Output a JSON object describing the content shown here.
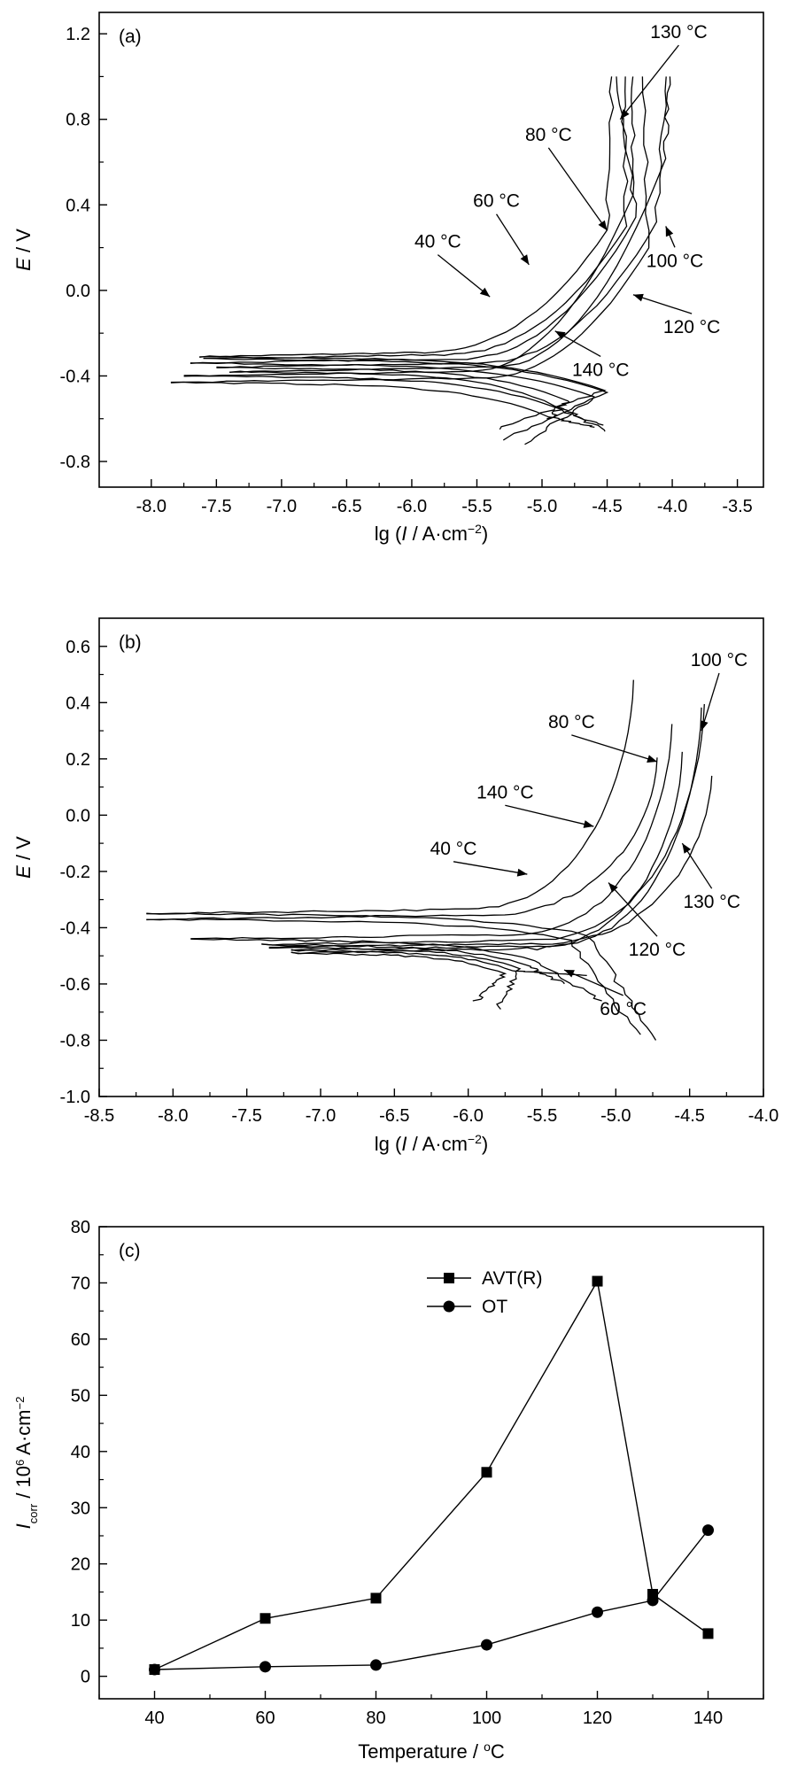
{
  "chart_data": [
    {
      "type": "line",
      "panel": "(a)",
      "xlabel": {
        "pre": "lg (",
        "italic": "I",
        "mid": " / A·cm",
        "sup": "−2",
        "post": ")"
      },
      "ylabel": {
        "italic": "E",
        "rest": " / V"
      },
      "xlim": [
        -8.4,
        -3.3
      ],
      "ylim": [
        -0.92,
        1.3
      ],
      "xticks": [
        "-8.0",
        "-7.5",
        "-7.0",
        "-6.5",
        "-6.0",
        "-5.5",
        "-5.0",
        "-4.5",
        "-4.0",
        "-3.5"
      ],
      "yticks": [
        "-0.8",
        "-0.4",
        "0.0",
        "0.4",
        "0.8",
        "1.2"
      ],
      "series": [
        {
          "name": "40 °C",
          "ecorr": -0.31,
          "x0": -7.63,
          "xs": -5.9,
          "xv": -4.5,
          "yv": 0.28,
          "xtop": -4.46,
          "xend": -5.35,
          "ymin": -0.65,
          "cx": -4.52
        },
        {
          "name": "60 °C",
          "ecorr": -0.32,
          "x0": -7.6,
          "xs": -5.75,
          "xv": -4.35,
          "yv": 0.3,
          "xtop": -4.38,
          "xend": -5.3,
          "ymin": -0.7,
          "cx": -4.5
        },
        {
          "name": "80 °C",
          "ecorr": -0.34,
          "x0": -7.7,
          "xs": -5.65,
          "xv": -4.28,
          "yv": 0.34,
          "xtop": -4.42,
          "xend": -5.15,
          "ymin": -0.72,
          "cx": -4.6
        },
        {
          "name": "100 °C",
          "ecorr": -0.36,
          "x0": -7.5,
          "xs": -5.5,
          "xv": -4.12,
          "yv": 0.32,
          "xtop": -4.05,
          "xend": -4.95,
          "ymin": -0.6,
          "cx": -4.8
        },
        {
          "name": "120 °C",
          "ecorr": -0.38,
          "x0": -7.4,
          "xs": -5.4,
          "xv": -4.05,
          "yv": 0.62,
          "xtop": -4.03,
          "xend": -4.55,
          "ymin": -0.63,
          "cx": -4.9
        },
        {
          "name": "130 °C",
          "ecorr": -0.4,
          "x0": -7.75,
          "xs": -5.6,
          "xv": -4.3,
          "yv": 0.45,
          "xtop": -4.3,
          "xend": -4.5,
          "ymin": -0.66,
          "cx": -4.85
        },
        {
          "name": "140 °C",
          "ecorr": -0.43,
          "x0": -7.85,
          "xs": -5.5,
          "xv": -4.18,
          "yv": 0.2,
          "xtop": -4.22,
          "xend": -4.6,
          "ymin": -0.64,
          "cx": -4.95
        }
      ],
      "annotations": [
        {
          "text": "130 °C",
          "lx": -3.95,
          "ly": 1.18,
          "ax": -4.4,
          "ay": 0.8
        },
        {
          "text": "80 °C",
          "lx": -4.95,
          "ly": 0.7,
          "ax": -4.5,
          "ay": 0.28
        },
        {
          "text": "60 °C",
          "lx": -5.35,
          "ly": 0.39,
          "ax": -5.1,
          "ay": 0.12
        },
        {
          "text": "40 °C",
          "lx": -5.8,
          "ly": 0.2,
          "ax": -5.4,
          "ay": -0.03
        },
        {
          "text": "100 °C",
          "lx": -3.98,
          "ly": 0.11,
          "ax": -4.05,
          "ay": 0.3
        },
        {
          "text": "120 °C",
          "lx": -3.85,
          "ly": -0.2,
          "ax": -4.3,
          "ay": -0.02
        },
        {
          "text": "140 °C",
          "lx": -4.55,
          "ly": -0.4,
          "ax": -4.9,
          "ay": -0.19
        }
      ]
    },
    {
      "type": "line",
      "panel": "(b)",
      "xlabel": {
        "pre": "lg (",
        "italic": "I",
        "mid": " / A·cm",
        "sup": "−2",
        "post": ")"
      },
      "ylabel": {
        "italic": "E",
        "rest": " / V"
      },
      "xlim": [
        -8.5,
        -4.0
      ],
      "ylim": [
        -1.0,
        0.7
      ],
      "xticks": [
        "-8.5",
        "-8.0",
        "-7.5",
        "-7.0",
        "-6.5",
        "-6.0",
        "-5.5",
        "-5.0",
        "-4.5",
        "-4.0"
      ],
      "yticks": [
        "-1.0",
        "-0.8",
        "-0.6",
        "-0.4",
        "-0.2",
        "0.0",
        "0.2",
        "0.4",
        "0.6"
      ],
      "series": [
        {
          "name": "40 °C",
          "ecorr": -0.35,
          "x0": -8.18,
          "xs": -6.0,
          "xtop": -4.88,
          "ytop": 0.48,
          "xend": -4.72,
          "ymin": -0.8,
          "cx": -5.2
        },
        {
          "name": "60 °C",
          "ecorr": -0.37,
          "x0": -8.18,
          "xs": -5.9,
          "xtop": -4.72,
          "ytop": 0.2,
          "xend": -4.85,
          "ymin": -0.78,
          "cx": -5.3
        },
        {
          "name": "80 °C",
          "ecorr": -0.44,
          "x0": -7.88,
          "xs": -5.7,
          "xtop": -4.62,
          "ytop": 0.32,
          "xend": -5.1,
          "ymin": -0.66,
          "cx": -5.55
        },
        {
          "name": "100 °C",
          "ecorr": -0.46,
          "x0": -7.4,
          "xs": -5.55,
          "xtop": -4.4,
          "ytop": 0.4,
          "xend": -5.35,
          "ymin": -0.6,
          "cx": -5.6
        },
        {
          "name": "120 °C",
          "ecorr": -0.47,
          "x0": -7.35,
          "xs": -5.5,
          "xtop": -4.35,
          "ytop": 0.14,
          "xend": -5.8,
          "ymin": -0.69,
          "cx": -5.65
        },
        {
          "name": "130 °C",
          "ecorr": -0.48,
          "x0": -7.2,
          "xs": -5.45,
          "xtop": -4.42,
          "ytop": 0.38,
          "xend": -5.2,
          "ymin": -0.57,
          "cx": -5.7
        },
        {
          "name": "140 °C",
          "ecorr": -0.49,
          "x0": -7.2,
          "xs": -5.6,
          "xtop": -4.55,
          "ytop": 0.22,
          "xend": -5.95,
          "ymin": -0.66,
          "cx": -5.75
        }
      ],
      "annotations": [
        {
          "text": "100 °C",
          "lx": -4.3,
          "ly": 0.53,
          "ax": -4.42,
          "ay": 0.3
        },
        {
          "text": "80 °C",
          "lx": -5.3,
          "ly": 0.31,
          "ax": -4.72,
          "ay": 0.19
        },
        {
          "text": "140 °C",
          "lx": -5.75,
          "ly": 0.06,
          "ax": -5.15,
          "ay": -0.04
        },
        {
          "text": "40 °C",
          "lx": -6.1,
          "ly": -0.14,
          "ax": -5.6,
          "ay": -0.21
        },
        {
          "text": "130 °C",
          "lx": -4.35,
          "ly": -0.33,
          "ax": -4.55,
          "ay": -0.1
        },
        {
          "text": "120 °C",
          "lx": -4.72,
          "ly": -0.5,
          "ax": -5.05,
          "ay": -0.24
        },
        {
          "text": "60 °C",
          "lx": -4.95,
          "ly": -0.71,
          "ax": -5.35,
          "ay": -0.55
        }
      ]
    },
    {
      "type": "line",
      "panel": "(c)",
      "xlabel": {
        "pre": "Temperature / ",
        "sup": "o",
        "post": "C"
      },
      "ylabel": {
        "italic": "I",
        "sub": "corr",
        "mid": " / 10",
        "sup": "6",
        "rest": " A·cm",
        "sup2": "−2"
      },
      "xlim": [
        30,
        150
      ],
      "ylim": [
        -4,
        80
      ],
      "xticks": [
        40,
        60,
        80,
        100,
        120,
        140
      ],
      "yticks": [
        0,
        10,
        20,
        30,
        40,
        50,
        60,
        70,
        80
      ],
      "x": [
        40,
        60,
        80,
        100,
        120,
        130,
        140
      ],
      "series": [
        {
          "name": "AVT(R)",
          "marker": "square",
          "values": [
            1.2,
            10.3,
            13.9,
            36.3,
            70.3,
            14.6,
            7.6
          ]
        },
        {
          "name": "OT",
          "marker": "circle",
          "values": [
            1.2,
            1.7,
            2.0,
            5.6,
            11.4,
            13.5,
            26.0
          ]
        }
      ]
    }
  ]
}
